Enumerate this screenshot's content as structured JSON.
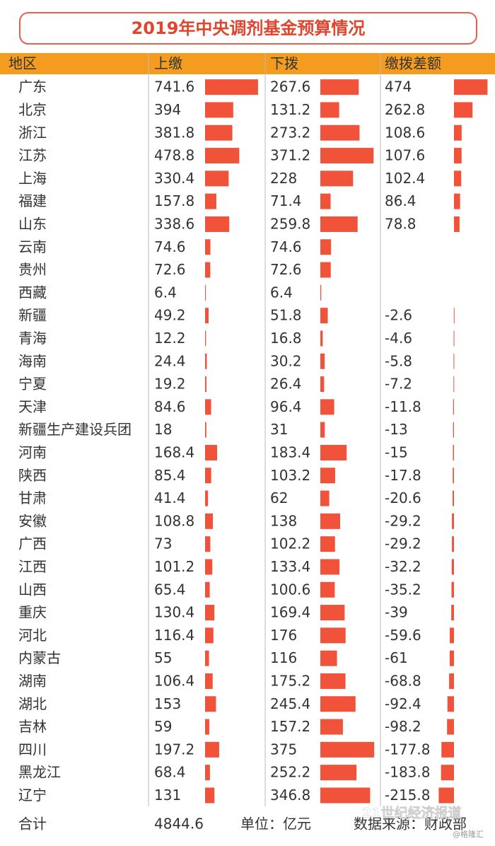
{
  "title": "2019年中央调剂基金预算情况",
  "table": {
    "columns": [
      "地区",
      "上缴",
      "下拨",
      "缴拨差额"
    ],
    "rows": [
      [
        "广东",
        741.6,
        267.6,
        474
      ],
      [
        "北京",
        394,
        131.2,
        262.8
      ],
      [
        "浙江",
        381.8,
        273.2,
        108.6
      ],
      [
        "江苏",
        478.8,
        371.2,
        107.6
      ],
      [
        "上海",
        330.4,
        228,
        102.4
      ],
      [
        "福建",
        157.8,
        71.4,
        86.4
      ],
      [
        "山东",
        338.6,
        259.8,
        78.8
      ],
      [
        "云南",
        74.6,
        74.6,
        null
      ],
      [
        "贵州",
        72.6,
        72.6,
        null
      ],
      [
        "西藏",
        6.4,
        6.4,
        null
      ],
      [
        "新疆",
        49.2,
        51.8,
        -2.6
      ],
      [
        "青海",
        12.2,
        16.8,
        -4.6
      ],
      [
        "海南",
        24.4,
        30.2,
        -5.8
      ],
      [
        "宁夏",
        19.2,
        26.4,
        -7.2
      ],
      [
        "天津",
        84.6,
        96.4,
        -11.8
      ],
      [
        "新疆生产建设兵团",
        18,
        31,
        -13
      ],
      [
        "河南",
        168.4,
        183.4,
        -15
      ],
      [
        "陕西",
        85.4,
        103.2,
        -17.8
      ],
      [
        "甘肃",
        41.4,
        62,
        -20.6
      ],
      [
        "安徽",
        108.8,
        138,
        -29.2
      ],
      [
        "广西",
        73,
        102.2,
        -29.2
      ],
      [
        "江西",
        101.2,
        133.4,
        -32.2
      ],
      [
        "山西",
        65.4,
        100.6,
        -35.2
      ],
      [
        "重庆",
        130.4,
        169.4,
        -39
      ],
      [
        "河北",
        116.4,
        176,
        -59.6
      ],
      [
        "内蒙古",
        55,
        116,
        -61
      ],
      [
        "湖南",
        106.4,
        175.2,
        -68.8
      ],
      [
        "湖北",
        153,
        245.4,
        -92.4
      ],
      [
        "吉林",
        59,
        157.2,
        -98.2
      ],
      [
        "四川",
        197.2,
        375,
        -177.8
      ],
      [
        "黑龙江",
        68.4,
        252.2,
        -183.8
      ],
      [
        "辽宁",
        131,
        346.8,
        -215.8
      ]
    ],
    "footer": {
      "label": "合计",
      "total": 4844.6,
      "unit": "单位：亿元",
      "source": "数据来源：财政部"
    }
  },
  "watermarks": [
    "21世纪经济报道",
    "@格隆汇"
  ]
}
